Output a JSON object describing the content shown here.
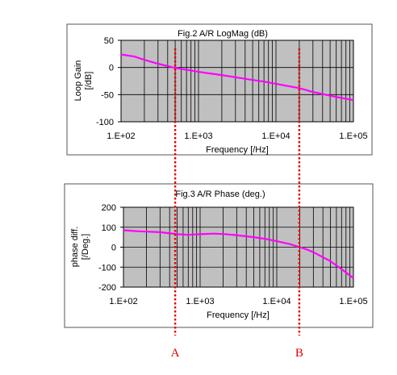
{
  "chart_data": [
    {
      "type": "line",
      "title": "Fig.2 A/R LogMag (dB)",
      "xlabel": "Frequency [/Hz]",
      "ylabel": "Loop Gain\n[/dB]",
      "x_scale": "log",
      "xlim": [
        100,
        100000
      ],
      "ylim": [
        -100,
        50
      ],
      "x_ticks": [
        100,
        1000,
        10000,
        100000
      ],
      "x_tick_labels": [
        "1.E+02",
        "1.E+03",
        "1.E+04",
        "1.E+05"
      ],
      "y_ticks": [
        50,
        0,
        -50,
        -100
      ],
      "y_tick_labels": [
        "50",
        "0",
        "-50",
        "-100"
      ],
      "grid": true,
      "series": [
        {
          "color": "#ff00ff",
          "x": [
            100,
            150,
            200,
            300,
            500,
            700,
            1000,
            2000,
            3000,
            5000,
            7000,
            10000,
            20000,
            30000,
            50000,
            70000,
            100000
          ],
          "y": [
            24,
            20,
            14,
            7,
            -1,
            -4,
            -8,
            -14,
            -18,
            -23,
            -26,
            -30,
            -38,
            -45,
            -52,
            -56,
            -60
          ]
        }
      ]
    },
    {
      "type": "line",
      "title": "Fig.3 A/R Phase (deg.)",
      "xlabel": "Frequency [/Hz]",
      "ylabel": "phase diff.\n[/Deg.]",
      "x_scale": "log",
      "xlim": [
        100,
        100000
      ],
      "ylim": [
        -200,
        200
      ],
      "x_ticks": [
        100,
        1000,
        10000,
        100000
      ],
      "x_tick_labels": [
        "1.E+02",
        "1.E+03",
        "1.E+04",
        "1.E+05"
      ],
      "y_ticks": [
        200,
        100,
        0,
        -100,
        -200
      ],
      "y_tick_labels": [
        "200",
        "100",
        "0",
        "-100",
        "-200"
      ],
      "grid": true,
      "series": [
        {
          "color": "#ff00ff",
          "x": [
            100,
            150,
            200,
            300,
            500,
            700,
            1000,
            1500,
            2000,
            3000,
            5000,
            7000,
            10000,
            15000,
            20000,
            25000,
            30000,
            50000,
            70000,
            100000
          ],
          "y": [
            85,
            80,
            78,
            75,
            65,
            62,
            65,
            68,
            66,
            60,
            50,
            42,
            30,
            15,
            0,
            -12,
            -25,
            -70,
            -110,
            -155
          ]
        }
      ]
    }
  ],
  "markers": [
    {
      "label": "A",
      "x": 500
    },
    {
      "label": "B",
      "x": 20000
    }
  ]
}
